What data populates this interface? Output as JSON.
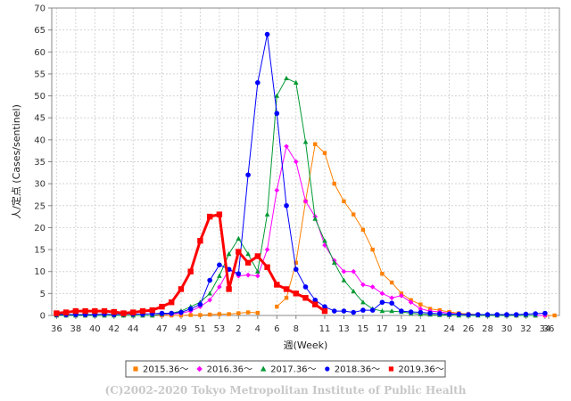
{
  "chart_data": {
    "type": "line",
    "xlabel": "週(Week)",
    "ylabel": "人/定点 (Cases/sentinel)",
    "ylim": [
      0,
      70
    ],
    "y_tick_step": 5,
    "x_tick_labels": [
      "36",
      "38",
      "40",
      "42",
      "44",
      "47",
      "49",
      "51",
      "53",
      "2",
      "4",
      "6",
      "8",
      "11",
      "13",
      "15",
      "17",
      "19",
      "21",
      "24",
      "26",
      "28",
      "30",
      "32",
      "34",
      "36"
    ],
    "grid": true,
    "legend_position": "bottom",
    "credit": "(C)2002-2020 Tokyo Metropolitan Institute of Public Health",
    "series": [
      {
        "name": "2015.36～",
        "color": "#ff8000",
        "marker": "square",
        "values": [
          0,
          0,
          0,
          0,
          0,
          0,
          0,
          0,
          0,
          0,
          0,
          0,
          0,
          0,
          0.1,
          0.1,
          0.2,
          0.3,
          0.3,
          0.5,
          0.7,
          0.6,
          null,
          2,
          4,
          12,
          26,
          39,
          37,
          30,
          26,
          23,
          19.5,
          15,
          9.5,
          7.5,
          5,
          3.5,
          2.5,
          1.5,
          1.2,
          0.8,
          0.5,
          0.3,
          0.2,
          0.1,
          0.1,
          0.1,
          0,
          0,
          0,
          0,
          0
        ]
      },
      {
        "name": "2016.36～",
        "color": "#ff00ff",
        "marker": "diamond",
        "values": [
          0,
          0,
          0,
          0,
          0,
          0,
          0,
          0,
          0,
          0,
          0,
          0.2,
          0.3,
          0.5,
          1,
          2,
          3.5,
          6.5,
          10.5,
          9,
          9.2,
          9,
          15,
          28.5,
          38.5,
          35,
          26,
          22.5,
          16,
          12.5,
          10,
          10,
          7,
          6.5,
          5,
          4,
          4.5,
          3,
          1.5,
          1,
          0.8,
          0.5,
          0.3,
          0.2,
          0.1,
          0.1,
          0,
          0,
          0,
          0,
          0,
          0
        ]
      },
      {
        "name": "2017.36～",
        "color": "#009933",
        "marker": "triangle",
        "values": [
          0,
          0,
          0,
          0,
          0,
          0,
          0,
          0,
          0,
          0,
          0,
          0.3,
          0.5,
          1,
          2,
          3,
          5,
          9,
          14,
          17.5,
          14,
          10,
          23,
          50,
          54,
          53,
          39.5,
          22,
          17,
          12,
          8,
          5.5,
          3,
          1.5,
          1,
          1,
          0.8,
          0.5,
          0.3,
          0.2,
          0.1,
          0.1,
          0,
          0,
          0,
          0,
          0,
          0,
          0,
          0,
          0
        ]
      },
      {
        "name": "2018.36～",
        "color": "#0000ff",
        "marker": "circle",
        "values": [
          0.2,
          0.2,
          0.2,
          0.2,
          0.2,
          0.3,
          0.2,
          0.3,
          0.3,
          0.3,
          0.4,
          0.5,
          0.5,
          0.7,
          1.5,
          2.5,
          8,
          11.5,
          10.5,
          9.5,
          32,
          53,
          64,
          46,
          25,
          10.5,
          6.5,
          3.5,
          2,
          1,
          1,
          0.7,
          1.2,
          1.2,
          3,
          2.8,
          1,
          0.8,
          0.7,
          0.5,
          0.4,
          0.3,
          0.3,
          0.2,
          0.2,
          0.2,
          0.2,
          0.2,
          0.2,
          0.3,
          0.4,
          0.5
        ]
      },
      {
        "name": "2019.36～",
        "color": "#ff0000",
        "marker": "square",
        "values": [
          0.5,
          0.7,
          1,
          1,
          1,
          1,
          0.8,
          0.5,
          0.7,
          1,
          1.2,
          2,
          3,
          6,
          10,
          17,
          22.5,
          23,
          6,
          14.5,
          12,
          13.5,
          11,
          7,
          6,
          5,
          4,
          2.5,
          1
        ]
      }
    ]
  }
}
